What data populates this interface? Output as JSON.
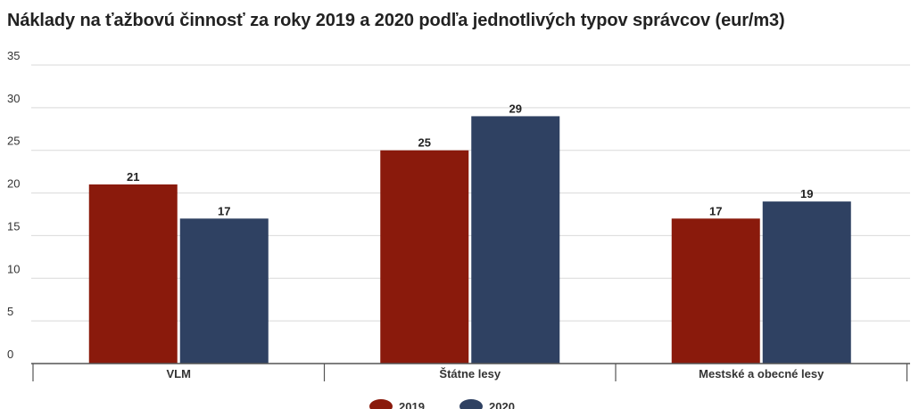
{
  "chart_data": {
    "type": "bar",
    "title": "Náklady na ťažbovú činnosť za roky 2019 a 2020 podľa jednotlivých typov správcov (eur/m3)",
    "xlabel": "",
    "ylabel": "",
    "categories": [
      "VLM",
      "Štátne lesy",
      "Mestské a obecné lesy"
    ],
    "series": [
      {
        "name": "2019",
        "values": [
          21,
          25,
          17
        ],
        "color": "#8a1a0c"
      },
      {
        "name": "2020",
        "values": [
          17,
          29,
          19
        ],
        "color": "#2f4162"
      }
    ],
    "ylim": [
      0,
      35
    ],
    "yticks": [
      "0",
      "5",
      "10",
      "15",
      "20",
      "25",
      "30",
      "35"
    ],
    "data_labels": true,
    "grid": true,
    "legend_position": "bottom-center"
  }
}
